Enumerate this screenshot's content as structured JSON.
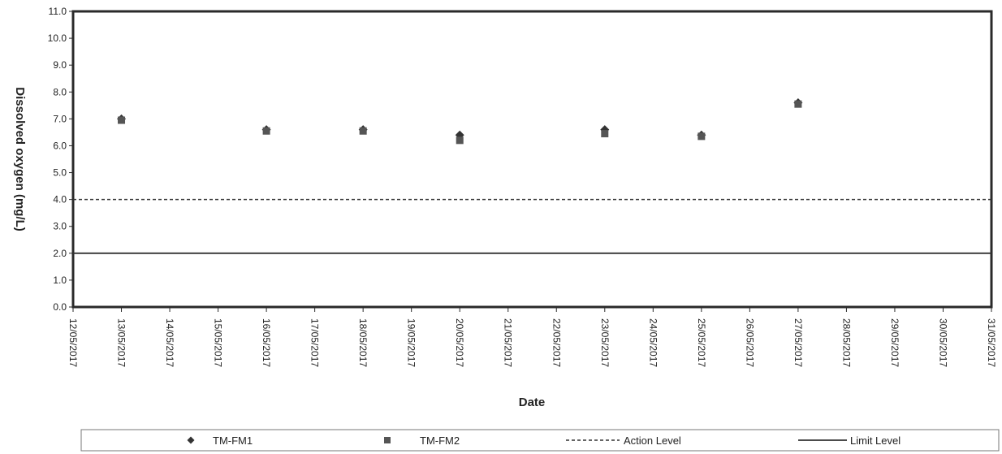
{
  "chart_data": {
    "type": "scatter",
    "xlabel": "Date",
    "ylabel": "Dissolved oxygen (mg/L)",
    "ylim": [
      0,
      11
    ],
    "yticks": [
      "0.0",
      "1.0",
      "2.0",
      "3.0",
      "4.0",
      "5.0",
      "6.0",
      "7.0",
      "8.0",
      "9.0",
      "10.0",
      "11.0"
    ],
    "xticks": [
      "12/05/2017",
      "13/05/2017",
      "14/05/2017",
      "15/05/2017",
      "16/05/2017",
      "17/05/2017",
      "18/05/2017",
      "19/05/2017",
      "20/05/2017",
      "21/05/2017",
      "22/05/2017",
      "23/05/2017",
      "24/05/2017",
      "25/05/2017",
      "26/05/2017",
      "27/05/2017",
      "28/05/2017",
      "29/05/2017",
      "30/05/2017",
      "31/05/2017"
    ],
    "xlim": [
      "12/05/2017",
      "31/05/2017"
    ],
    "grid": false,
    "legend_position": "bottom",
    "series": [
      {
        "name": "TM-FM1",
        "marker": "diamond",
        "color": "#333333",
        "points": [
          {
            "x": "13/05/2017",
            "y": 7.0
          },
          {
            "x": "16/05/2017",
            "y": 6.6
          },
          {
            "x": "18/05/2017",
            "y": 6.6
          },
          {
            "x": "20/05/2017",
            "y": 6.4
          },
          {
            "x": "23/05/2017",
            "y": 6.6
          },
          {
            "x": "25/05/2017",
            "y": 6.4
          },
          {
            "x": "27/05/2017",
            "y": 7.6
          }
        ]
      },
      {
        "name": "TM-FM2",
        "marker": "square",
        "color": "#555555",
        "points": [
          {
            "x": "13/05/2017",
            "y": 6.95
          },
          {
            "x": "16/05/2017",
            "y": 6.55
          },
          {
            "x": "18/05/2017",
            "y": 6.55
          },
          {
            "x": "20/05/2017",
            "y": 6.2
          },
          {
            "x": "23/05/2017",
            "y": 6.45
          },
          {
            "x": "25/05/2017",
            "y": 6.35
          },
          {
            "x": "27/05/2017",
            "y": 7.55
          }
        ]
      }
    ],
    "reference_lines": [
      {
        "name": "Action Level",
        "y": 4.0,
        "style": "dashed",
        "color": "#333333"
      },
      {
        "name": "Limit Level",
        "y": 2.0,
        "style": "solid",
        "color": "#333333"
      }
    ]
  }
}
